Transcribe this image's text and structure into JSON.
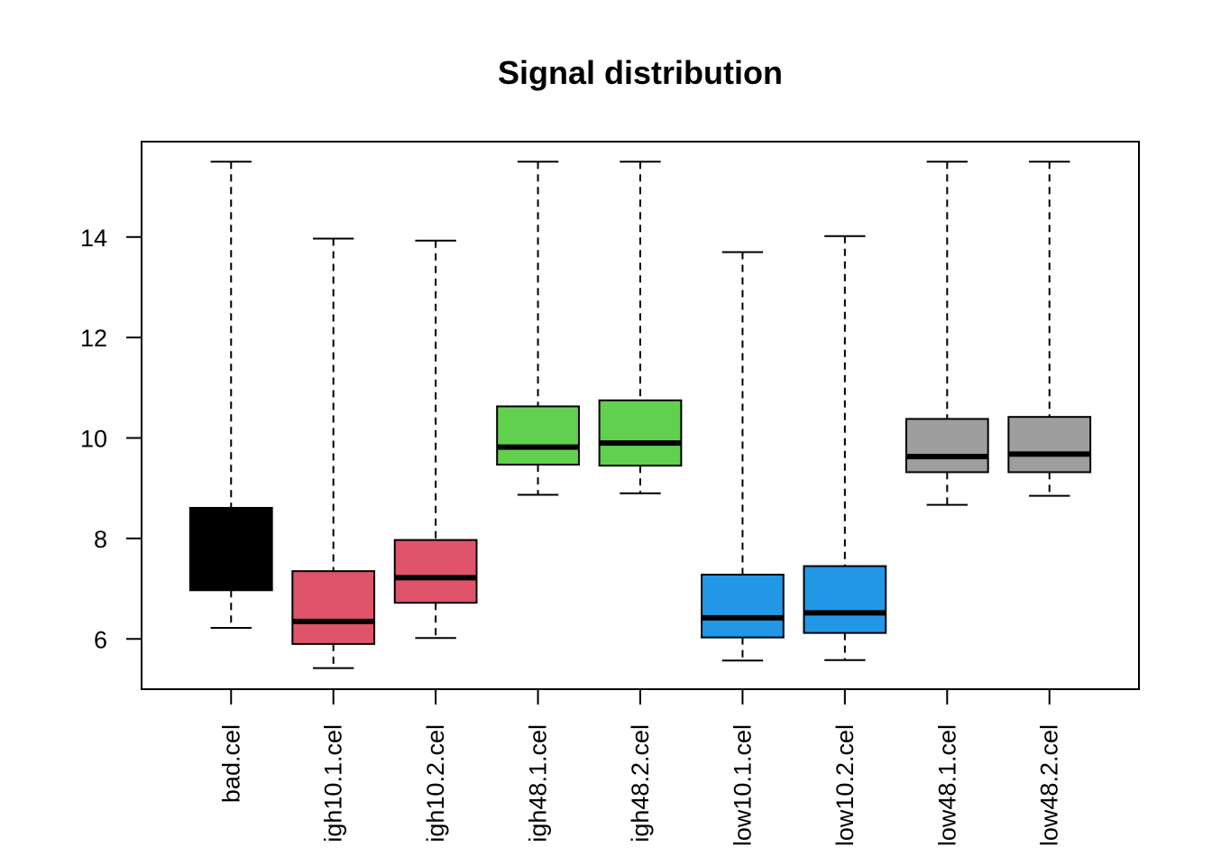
{
  "chart_data": {
    "type": "boxplot",
    "title": "Signal distribution",
    "xlabel": "",
    "ylabel": "",
    "ylim": [
      5,
      15.9
    ],
    "yticks": [
      6,
      8,
      10,
      12,
      14
    ],
    "grid": false,
    "legend": "none",
    "categories": [
      "bad.cel",
      "igh10.1.cel",
      "igh10.2.cel",
      "igh48.1.cel",
      "igh48.2.cel",
      "low10.1.cel",
      "low10.2.cel",
      "low48.1.cel",
      "low48.2.cel"
    ],
    "boxes": [
      {
        "min": 6.22,
        "q1": 6.97,
        "median": 7.8,
        "q3": 8.61,
        "max": 15.5,
        "color": "#000000"
      },
      {
        "min": 5.42,
        "q1": 5.9,
        "median": 6.35,
        "q3": 7.35,
        "max": 13.97,
        "color": "#DF536B"
      },
      {
        "min": 6.02,
        "q1": 6.72,
        "median": 7.22,
        "q3": 7.97,
        "max": 13.93,
        "color": "#DF536B"
      },
      {
        "min": 8.87,
        "q1": 9.47,
        "median": 9.82,
        "q3": 10.63,
        "max": 15.5,
        "color": "#61D04F"
      },
      {
        "min": 8.9,
        "q1": 9.45,
        "median": 9.9,
        "q3": 10.75,
        "max": 15.5,
        "color": "#61D04F"
      },
      {
        "min": 5.57,
        "q1": 6.03,
        "median": 6.42,
        "q3": 7.28,
        "max": 13.7,
        "color": "#2297E6"
      },
      {
        "min": 5.58,
        "q1": 6.12,
        "median": 6.52,
        "q3": 7.45,
        "max": 14.02,
        "color": "#2297E6"
      },
      {
        "min": 8.67,
        "q1": 9.32,
        "median": 9.63,
        "q3": 10.38,
        "max": 15.5,
        "color": "#9E9E9E"
      },
      {
        "min": 8.85,
        "q1": 9.32,
        "median": 9.68,
        "q3": 10.42,
        "max": 15.5,
        "color": "#9E9E9E"
      }
    ]
  }
}
